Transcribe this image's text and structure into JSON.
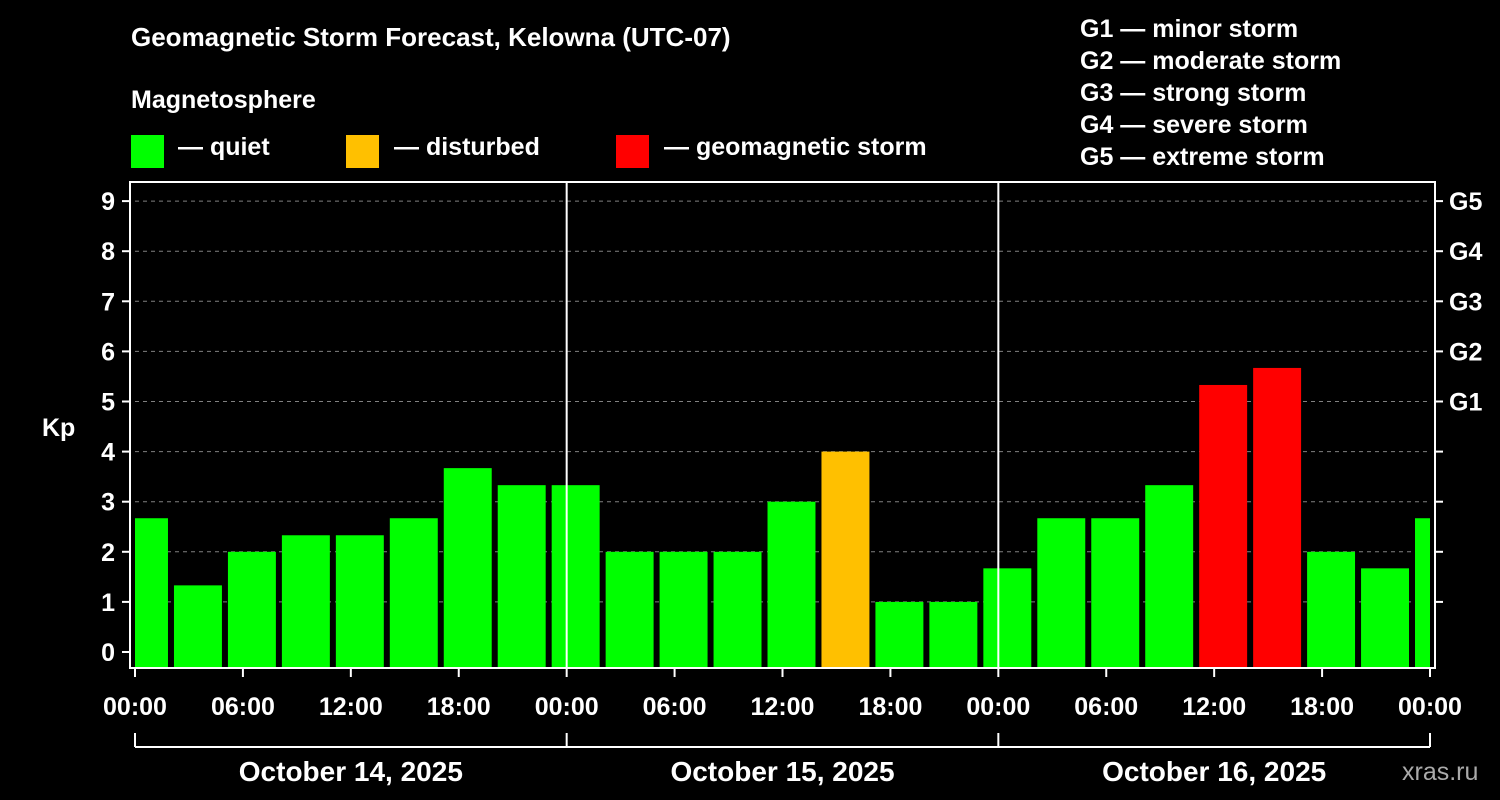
{
  "colors": {
    "quiet": "#00ff00",
    "disturbed": "#ffc000",
    "storm": "#ff0000",
    "background": "#000000",
    "axis": "#ffffff",
    "grid": "#808080"
  },
  "legend": {
    "title": "Magnetosphere",
    "items": [
      {
        "level": "quiet",
        "label": "— quiet"
      },
      {
        "level": "disturbed",
        "label": "— disturbed"
      },
      {
        "level": "storm",
        "label": "— geomagnetic storm"
      }
    ]
  },
  "storm_scale": [
    "G1 — minor storm",
    "G2 — moderate storm",
    "G3 — strong storm",
    "G4 — severe storm",
    "G5 — extreme storm"
  ],
  "watermark": "xras.ru",
  "chart_data": {
    "type": "bar",
    "title": "Geomagnetic Storm Forecast, Kelowna (UTC-07)",
    "ylabel": "Kp",
    "ylim": [
      0,
      9
    ],
    "yticks": [
      "0",
      "1",
      "2",
      "3",
      "4",
      "5",
      "6",
      "7",
      "8",
      "9"
    ],
    "right_ticks": [
      {
        "kp": 5,
        "label": "G1"
      },
      {
        "kp": 6,
        "label": "G2"
      },
      {
        "kp": 7,
        "label": "G3"
      },
      {
        "kp": 8,
        "label": "G4"
      },
      {
        "kp": 9,
        "label": "G5"
      }
    ],
    "xlim_hours": [
      0,
      72
    ],
    "xtick_labels": [
      "00:00",
      "06:00",
      "12:00",
      "18:00",
      "00:00",
      "06:00",
      "12:00",
      "18:00",
      "00:00",
      "06:00",
      "12:00",
      "18:00",
      "00:00"
    ],
    "day_labels": [
      "October 14, 2025",
      "October 15, 2025",
      "October 16, 2025"
    ],
    "grid": "dashed horizontal at each Kp",
    "bars": [
      {
        "start_hour": -1,
        "kp": 2.67,
        "level": "quiet"
      },
      {
        "start_hour": 2,
        "kp": 1.33,
        "level": "quiet"
      },
      {
        "start_hour": 5,
        "kp": 2.0,
        "level": "quiet"
      },
      {
        "start_hour": 8,
        "kp": 2.33,
        "level": "quiet"
      },
      {
        "start_hour": 11,
        "kp": 2.33,
        "level": "quiet"
      },
      {
        "start_hour": 14,
        "kp": 2.67,
        "level": "quiet"
      },
      {
        "start_hour": 17,
        "kp": 3.67,
        "level": "quiet"
      },
      {
        "start_hour": 20,
        "kp": 3.33,
        "level": "quiet"
      },
      {
        "start_hour": 23,
        "kp": 3.33,
        "level": "quiet"
      },
      {
        "start_hour": 26,
        "kp": 2.0,
        "level": "quiet"
      },
      {
        "start_hour": 29,
        "kp": 2.0,
        "level": "quiet"
      },
      {
        "start_hour": 32,
        "kp": 2.0,
        "level": "quiet"
      },
      {
        "start_hour": 35,
        "kp": 3.0,
        "level": "quiet"
      },
      {
        "start_hour": 38,
        "kp": 4.0,
        "level": "disturbed"
      },
      {
        "start_hour": 41,
        "kp": 1.0,
        "level": "quiet"
      },
      {
        "start_hour": 44,
        "kp": 1.0,
        "level": "quiet"
      },
      {
        "start_hour": 47,
        "kp": 1.67,
        "level": "quiet"
      },
      {
        "start_hour": 50,
        "kp": 2.67,
        "level": "quiet"
      },
      {
        "start_hour": 53,
        "kp": 2.67,
        "level": "quiet"
      },
      {
        "start_hour": 56,
        "kp": 3.33,
        "level": "quiet"
      },
      {
        "start_hour": 59,
        "kp": 5.33,
        "level": "storm"
      },
      {
        "start_hour": 62,
        "kp": 5.67,
        "level": "storm"
      },
      {
        "start_hour": 65,
        "kp": 2.0,
        "level": "quiet"
      },
      {
        "start_hour": 68,
        "kp": 1.67,
        "level": "quiet"
      },
      {
        "start_hour": 71,
        "kp": 2.67,
        "level": "quiet"
      }
    ]
  }
}
